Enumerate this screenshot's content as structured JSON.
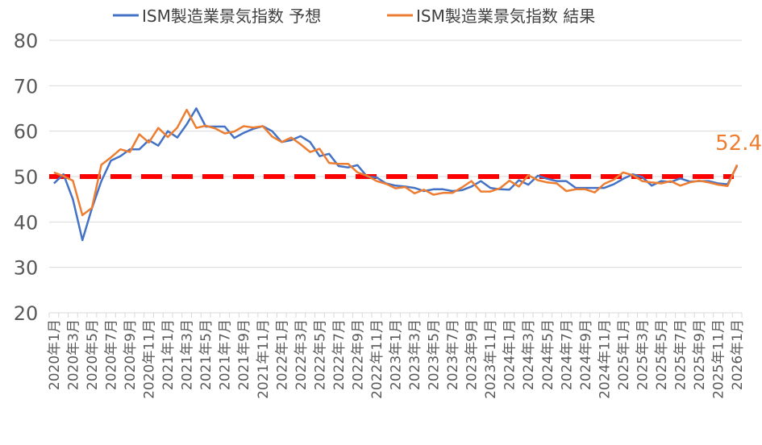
{
  "chart_data": {
    "type": "line",
    "title": "",
    "xlabel": "",
    "ylabel": "",
    "ylim": [
      20,
      80
    ],
    "yticks": [
      20,
      30,
      40,
      50,
      60,
      70,
      80
    ],
    "grid": "horizontal",
    "legend_position": "top",
    "x": [
      "2020年1月",
      "2020年2月",
      "2020年3月",
      "2020年4月",
      "2020年5月",
      "2020年6月",
      "2020年7月",
      "2020年8月",
      "2020年9月",
      "2020年10月",
      "2020年11月",
      "2020年12月",
      "2021年1月",
      "2021年2月",
      "2021年3月",
      "2021年4月",
      "2021年5月",
      "2021年6月",
      "2021年7月",
      "2021年8月",
      "2021年9月",
      "2021年10月",
      "2021年11月",
      "2021年12月",
      "2022年1月",
      "2022年2月",
      "2022年3月",
      "2022年4月",
      "2022年5月",
      "2022年6月",
      "2022年7月",
      "2022年8月",
      "2022年9月",
      "2022年10月",
      "2022年11月",
      "2022年12月",
      "2023年1月",
      "2023年2月",
      "2023年3月",
      "2023年4月",
      "2023年5月",
      "2023年6月",
      "2023年7月",
      "2023年8月",
      "2023年9月",
      "2023年10月",
      "2023年11月",
      "2023年12月",
      "2024年1月",
      "2024年2月",
      "2024年3月",
      "2024年4月",
      "2024年5月",
      "2024年6月",
      "2024年7月",
      "2024年8月",
      "2024年9月",
      "2024年10月",
      "2024年11月",
      "2024年12月",
      "2025年1月",
      "2025年2月",
      "2025年3月",
      "2025年4月",
      "2025年5月",
      "2025年6月",
      "2025年7月",
      "2025年8月",
      "2025年9月",
      "2025年10月",
      "2025年11月",
      "2025年12月",
      "2026年1月"
    ],
    "tick_labels": [
      "2020年1月",
      "2020年3月",
      "2020年5月",
      "2020年7月",
      "2020年9月",
      "2020年11月",
      "2021年1月",
      "2021年3月",
      "2021年5月",
      "2021年7月",
      "2021年9月",
      "2021年11月",
      "2022年1月",
      "2022年3月",
      "2022年5月",
      "2022年7月",
      "2022年9月",
      "2022年11月",
      "2023年1月",
      "2023年3月",
      "2023年5月",
      "2023年7月",
      "2023年9月",
      "2023年11月",
      "2024年1月",
      "2024年3月",
      "2024年5月",
      "2024年7月",
      "2024年9月",
      "2024年11月",
      "2025年1月",
      "2025年3月",
      "2025年5月",
      "2025年7月",
      "2025年9月",
      "2025年11月",
      "2026年1月"
    ],
    "series": [
      {
        "name": "ISM製造業景気指数 予想",
        "color": "#4472c4",
        "values": [
          48.5,
          50.5,
          45.0,
          36.0,
          43.0,
          49.0,
          53.5,
          54.5,
          56.0,
          56.0,
          58.0,
          56.8,
          60.0,
          58.6,
          61.5,
          65.0,
          61.0,
          61.0,
          61.0,
          58.5,
          59.6,
          60.5,
          61.1,
          60.0,
          57.6,
          58.0,
          58.9,
          57.6,
          54.5,
          55.0,
          52.3,
          52.0,
          52.5,
          50.0,
          49.8,
          48.5,
          48.0,
          47.8,
          47.5,
          46.8,
          47.2,
          47.2,
          46.8,
          47.0,
          47.8,
          49.0,
          47.5,
          47.2,
          47.1,
          49.2,
          48.2,
          50.2,
          49.5,
          49.0,
          49.0,
          47.5,
          47.5,
          47.5,
          47.5,
          48.3,
          49.5,
          50.5,
          49.9,
          48.0,
          49.0,
          48.8,
          49.6,
          48.9,
          49.0,
          49.0,
          48.5,
          48.3,
          52.4
        ]
      },
      {
        "name": "ISM製造業景気指数 結果",
        "color": "#ed7d31",
        "values": [
          50.9,
          50.1,
          49.1,
          41.5,
          43.1,
          52.6,
          54.2,
          56.0,
          55.4,
          59.3,
          57.5,
          60.7,
          58.7,
          60.8,
          64.7,
          60.7,
          61.2,
          60.6,
          59.5,
          59.9,
          61.1,
          60.8,
          61.1,
          58.8,
          57.6,
          58.6,
          57.1,
          55.4,
          56.1,
          53.0,
          52.8,
          52.8,
          50.9,
          50.2,
          49.0,
          48.4,
          47.4,
          47.7,
          46.3,
          47.1,
          46.0,
          46.4,
          46.4,
          47.6,
          49.0,
          46.7,
          46.7,
          47.4,
          49.1,
          47.8,
          50.3,
          49.2,
          48.7,
          48.5,
          46.8,
          47.2,
          47.2,
          46.5,
          48.4,
          49.3,
          50.9,
          50.3,
          49.0,
          48.7,
          48.5,
          49.0,
          48.0,
          48.7,
          49.1,
          48.7,
          48.2,
          47.9,
          52.6
        ]
      }
    ],
    "reference_line": {
      "value": 50,
      "color": "#ff0000",
      "style": "dashed"
    },
    "annotation": {
      "text": "52.4",
      "color": "#ed7d31"
    }
  }
}
